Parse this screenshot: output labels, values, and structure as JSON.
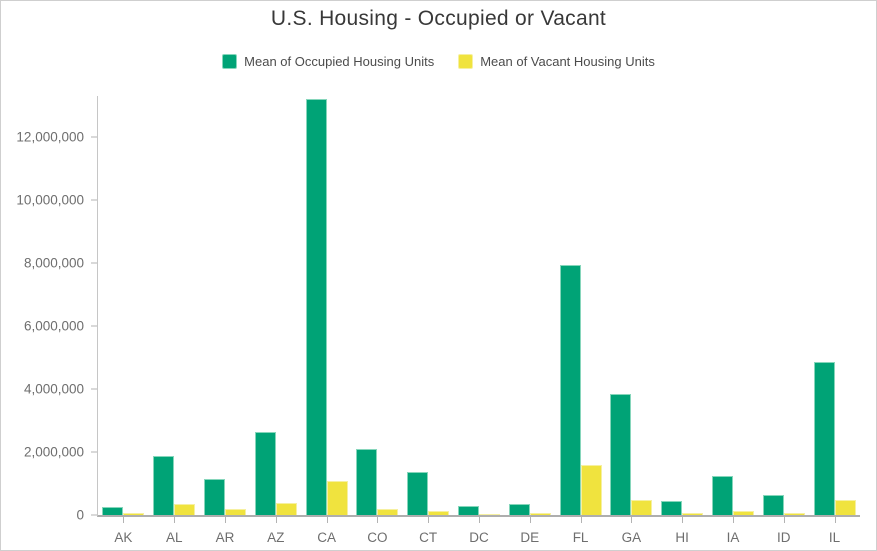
{
  "title": "U.S. Housing - Occupied or Vacant",
  "legend": [
    {
      "label": "Mean of Occupied Housing Units",
      "color": "#00a376",
      "border_color": "#86d6bb"
    },
    {
      "label": "Mean of Vacant Housing Units",
      "color": "#f0e33e",
      "border_color": "#f6f0a0"
    }
  ],
  "chart_data": {
    "type": "bar",
    "title": "U.S. Housing - Occupied or Vacant",
    "xlabel": "",
    "ylabel": "",
    "grid": false,
    "legend_position": "top",
    "ylim": [
      0,
      13300000
    ],
    "categories": [
      "AK",
      "AL",
      "AR",
      "AZ",
      "CA",
      "CO",
      "CT",
      "DC",
      "DE",
      "FL",
      "GA",
      "HI",
      "IA",
      "ID",
      "IL"
    ],
    "series": [
      {
        "name": "Mean of Occupied Housing Units",
        "color": "#00a376",
        "border_color": "#86d6bb",
        "values": [
          250000,
          1870000,
          1140000,
          2620000,
          13200000,
          2100000,
          1380000,
          270000,
          350000,
          7950000,
          3830000,
          455000,
          1250000,
          620000,
          4870000
        ]
      },
      {
        "name": "Mean of Vacant Housing Units",
        "color": "#f0e33e",
        "border_color": "#f6f0a0",
        "values": [
          60000,
          360000,
          180000,
          390000,
          1090000,
          205000,
          120000,
          30000,
          60000,
          1600000,
          480000,
          55000,
          135000,
          70000,
          480000
        ]
      }
    ],
    "y_ticks": [
      {
        "value": 0,
        "label": "0"
      },
      {
        "value": 2000000,
        "label": "2,000,000"
      },
      {
        "value": 4000000,
        "label": "4,000,000"
      },
      {
        "value": 6000000,
        "label": "6,000,000"
      },
      {
        "value": 8000000,
        "label": "8,000,000"
      },
      {
        "value": 10000000,
        "label": "10,000,000"
      },
      {
        "value": 12000000,
        "label": "12,000,000"
      }
    ]
  }
}
